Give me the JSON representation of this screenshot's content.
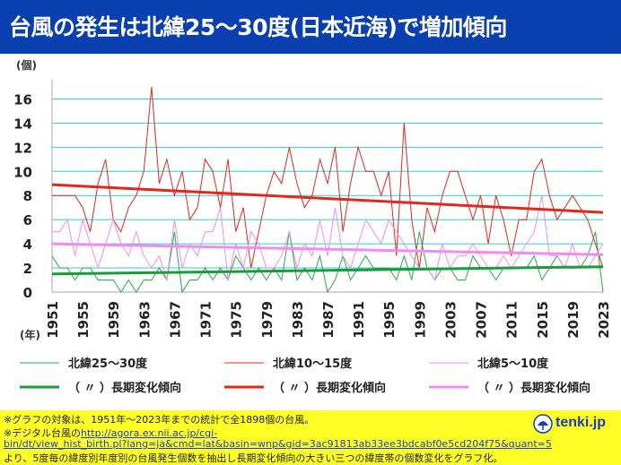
{
  "title": "台風の発生は北緯25〜30度(日本近海)で増加傾向",
  "colors": {
    "title_bg": "#0a3fb0",
    "footer_bg": "#ffff26",
    "s25": "#2aa84a",
    "s10": "#e0281e",
    "s5": "#f08cf0",
    "grid": "#33cccc"
  },
  "chart_data": {
    "type": "line",
    "ylabel": "(個)",
    "xlabel": "(年)",
    "ylim": [
      0,
      17
    ],
    "yticks": [
      0,
      2,
      4,
      6,
      8,
      10,
      12,
      14,
      16
    ],
    "xlim": [
      1951,
      2023
    ],
    "xticks": [
      1951,
      1955,
      1959,
      1963,
      1967,
      1971,
      1975,
      1979,
      1983,
      1987,
      1991,
      1995,
      1999,
      2003,
      2007,
      2011,
      2015,
      2019,
      2023
    ],
    "grid": true,
    "legend_position": "bottom",
    "x": [
      1951,
      1952,
      1953,
      1954,
      1955,
      1956,
      1957,
      1958,
      1959,
      1960,
      1961,
      1962,
      1963,
      1964,
      1965,
      1966,
      1967,
      1968,
      1969,
      1970,
      1971,
      1972,
      1973,
      1974,
      1975,
      1976,
      1977,
      1978,
      1979,
      1980,
      1981,
      1982,
      1983,
      1984,
      1985,
      1986,
      1987,
      1988,
      1989,
      1990,
      1991,
      1992,
      1993,
      1994,
      1995,
      1996,
      1997,
      1998,
      1999,
      2000,
      2001,
      2002,
      2003,
      2004,
      2005,
      2006,
      2007,
      2008,
      2009,
      2010,
      2011,
      2012,
      2013,
      2014,
      2015,
      2016,
      2017,
      2018,
      2019,
      2020,
      2021,
      2022,
      2023
    ],
    "series": [
      {
        "name": "北緯25〜30度",
        "color": "#2aa84a",
        "width": 1,
        "values": [
          3,
          2,
          2,
          1,
          2,
          2,
          1,
          1,
          1,
          0,
          1,
          0,
          1,
          1,
          2,
          1,
          5,
          0,
          1,
          1,
          2,
          1,
          2,
          1,
          3,
          2,
          1,
          2,
          1,
          2,
          1,
          5,
          1,
          2,
          1,
          3,
          0,
          1,
          3,
          1,
          2,
          3,
          2,
          2,
          2,
          1,
          3,
          1,
          5,
          2,
          1,
          2,
          2,
          1,
          1,
          3,
          2,
          2,
          1,
          2,
          2,
          2,
          2,
          3,
          1,
          2,
          3,
          2,
          2,
          2,
          3,
          5,
          0
        ]
      },
      {
        "name": "北緯10〜15度",
        "color": "#e0281e",
        "width": 1,
        "values": [
          8,
          8,
          8,
          8,
          7,
          5,
          9,
          11,
          6,
          5,
          7,
          8,
          10,
          17,
          9,
          11,
          8,
          10,
          6,
          7,
          11,
          10,
          7,
          11,
          5,
          7,
          2,
          5,
          8,
          10,
          9,
          12,
          9,
          7,
          8,
          11,
          9,
          12,
          5,
          9,
          12,
          10,
          10,
          8,
          10,
          3,
          14,
          6,
          2,
          7,
          5,
          8,
          10,
          10,
          8,
          6,
          8,
          4,
          8,
          6,
          3,
          6,
          6,
          10,
          11,
          8,
          6,
          7,
          8,
          7,
          6,
          4,
          2
        ]
      },
      {
        "name": "北緯5〜10度",
        "color": "#f08cf0",
        "width": 1,
        "values": [
          5,
          5,
          6,
          3,
          6,
          4,
          2,
          4,
          6,
          4,
          3,
          5,
          3,
          2,
          3,
          1,
          6,
          2,
          4,
          3,
          5,
          5,
          7,
          1,
          4,
          2,
          5,
          4,
          2,
          2,
          3,
          5,
          2,
          4,
          3,
          6,
          3,
          7,
          3,
          2,
          4,
          6,
          5,
          4,
          6,
          5,
          4,
          3,
          2,
          2,
          1,
          4,
          2,
          3,
          3,
          4,
          3,
          2,
          2,
          3,
          2,
          3,
          4,
          5,
          8,
          3,
          3,
          2,
          4,
          2,
          2,
          3,
          4
        ]
      },
      {
        "name": "（ 〃 ）長期変化傾向",
        "color": "#1c9a3c",
        "width": 3,
        "trend": true,
        "values_ends": [
          1.5,
          2.1
        ]
      },
      {
        "name": "（ 〃 ）長期変化傾向",
        "color": "#e0281e",
        "width": 3,
        "trend": true,
        "values_ends": [
          8.9,
          6.6
        ]
      },
      {
        "name": "（ 〃 ）長期変化傾向",
        "color": "#f08cf0",
        "width": 3,
        "trend": true,
        "values_ends": [
          4.0,
          3.1
        ]
      }
    ]
  },
  "footer": {
    "line1": "※グラフの対象は、1951年〜2023年までの統計で全1898個の台風。",
    "line2_prefix": "※デジタル台風の",
    "link_part1": "http://agora.ex.nii.ac.jp/cgi-",
    "link_part2": "bin/dt/view_hist_birth.pl?lang=ja&cmd=lat&basin=wnp&gid=3ac91813ab33ee3bdcabf0e5cd204f75&quant=5",
    "line4": "より、5度毎の緯度別年度別の台風発生個数を抽出し長期変化傾向の大きい三つの緯度帯の個数変化をグラフ化。",
    "logo_text": "tenki.jp"
  }
}
